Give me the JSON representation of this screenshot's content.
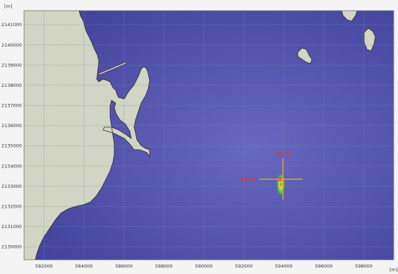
{
  "map": {
    "units": {
      "y": "[m]",
      "x": "[m]"
    },
    "colors": {
      "water": "#4a4aa6",
      "water_light": "#6a6ac0",
      "land": "#d2d4c4",
      "coast": "#2a2a2a",
      "grid": "#6a9a9a",
      "cross": "#f2a020",
      "label": "#e03a2e"
    },
    "x_axis": {
      "range": [
        581000,
        599500
      ],
      "ticks": [
        {
          "value": 582000,
          "label": "582000"
        },
        {
          "value": 584000,
          "label": "584000"
        },
        {
          "value": 586000,
          "label": "586000"
        },
        {
          "value": 588000,
          "label": "588000"
        },
        {
          "value": 590000,
          "label": "590000"
        },
        {
          "value": 592000,
          "label": "592000"
        },
        {
          "value": 594000,
          "label": "594000"
        },
        {
          "value": 596000,
          "label": "596000"
        },
        {
          "value": 598000,
          "label": "598000"
        }
      ]
    },
    "y_axis": {
      "range": [
        2129350,
        2141700
      ],
      "ticks": [
        {
          "value": 2141000,
          "label": "2141000"
        },
        {
          "value": 2140000,
          "label": "2140000"
        },
        {
          "value": 2139000,
          "label": "2139000"
        },
        {
          "value": 2138000,
          "label": "2138000"
        },
        {
          "value": 2137000,
          "label": "2137000"
        },
        {
          "value": 2136000,
          "label": "2136000"
        },
        {
          "value": 2135000,
          "label": "2135000"
        },
        {
          "value": 2134000,
          "label": "2134000"
        },
        {
          "value": 2133000,
          "label": "2133000"
        },
        {
          "value": 2132000,
          "label": "2132000"
        },
        {
          "value": 2131000,
          "label": "2131000"
        },
        {
          "value": 2130000,
          "label": "2130000"
        }
      ]
    },
    "markers": [
      {
        "id": "MC 01",
        "label": "MC 01",
        "x": 593750,
        "y": 2133350
      },
      {
        "id": "MC 02",
        "label": "MC 02",
        "x": 593950,
        "y": 2133380
      }
    ],
    "plume": {
      "x": 593850,
      "y": 2133350
    }
  }
}
